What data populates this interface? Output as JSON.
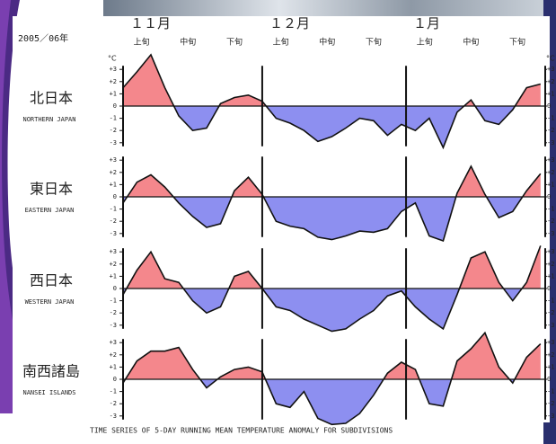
{
  "header": {
    "season": "2005／06年",
    "months": [
      "１１月",
      "１２月",
      "１月"
    ],
    "periods": [
      "上旬",
      "中旬",
      "下旬",
      "上旬",
      "中旬",
      "下旬",
      "上旬",
      "中旬",
      "下旬"
    ]
  },
  "footer": "TIME SERIES OF 5-DAY RUNNING MEAN TEMPERATURE ANOMALY FOR SUBDIVISIONS",
  "chart_data": [
    {
      "type": "area",
      "title": "北日本",
      "subtitle": "NORTHERN JAPAN",
      "unit": "°C",
      "x": [
        0,
        3,
        6,
        9,
        12,
        15,
        18,
        21,
        24,
        27,
        30,
        33,
        36,
        39,
        42,
        45,
        48,
        51,
        54,
        57,
        60,
        63,
        66,
        69,
        72,
        75,
        78,
        81,
        84,
        87,
        90
      ],
      "values": [
        1.5,
        2.8,
        4.2,
        1.5,
        -0.8,
        -2.0,
        -1.8,
        0.2,
        0.7,
        0.9,
        0.4,
        -1.0,
        -1.4,
        -2.0,
        -2.9,
        -2.5,
        -1.8,
        -1.0,
        -1.2,
        -2.4,
        -1.5,
        -2.0,
        -1.0,
        -3.4,
        -0.5,
        0.5,
        -1.2,
        -1.5,
        -0.3,
        1.5,
        1.8
      ],
      "xlim": [
        0,
        91
      ],
      "xticks": [
        0,
        30,
        61,
        91
      ],
      "ylim": [
        -3.7,
        3.7
      ],
      "yticks": [
        {
          "value": 3,
          "label": "+3"
        },
        {
          "value": 2,
          "label": "+2"
        },
        {
          "value": 1,
          "label": "+1"
        },
        0,
        -1,
        -2,
        -3
      ],
      "color_positive": "#f4878c",
      "color_negative": "#8d8ff0"
    },
    {
      "type": "area",
      "title": "東日本",
      "subtitle": "EASTERN JAPAN",
      "x": [
        0,
        3,
        6,
        9,
        12,
        15,
        18,
        21,
        24,
        27,
        30,
        33,
        36,
        39,
        42,
        45,
        48,
        51,
        54,
        57,
        60,
        63,
        66,
        69,
        72,
        75,
        78,
        81,
        84,
        87,
        90
      ],
      "values": [
        -0.5,
        1.2,
        1.8,
        0.8,
        -0.5,
        -1.6,
        -2.5,
        -2.2,
        0.5,
        1.6,
        0.2,
        -2.0,
        -2.4,
        -2.6,
        -3.3,
        -3.5,
        -3.2,
        -2.8,
        -2.9,
        -2.6,
        -1.2,
        -0.5,
        -3.2,
        -3.6,
        0.3,
        2.5,
        0.2,
        -1.7,
        -1.2,
        0.5,
        1.9
      ],
      "xlim": [
        0,
        91
      ],
      "xticks": [
        0,
        30,
        61,
        91
      ],
      "ylim": [
        -3.7,
        3.7
      ],
      "yticks": [
        {
          "value": 3,
          "label": "+3"
        },
        {
          "value": 2,
          "label": "+2"
        },
        {
          "value": 1,
          "label": "+1"
        },
        0,
        -1,
        -2,
        -3
      ],
      "color_positive": "#f4878c",
      "color_negative": "#8d8ff0"
    },
    {
      "type": "area",
      "title": "西日本",
      "subtitle": "WESTERN JAPAN",
      "x": [
        0,
        3,
        6,
        9,
        12,
        15,
        18,
        21,
        24,
        27,
        30,
        33,
        36,
        39,
        42,
        45,
        48,
        51,
        54,
        57,
        60,
        63,
        66,
        69,
        72,
        75,
        78,
        81,
        84,
        87,
        90
      ],
      "values": [
        -0.5,
        1.5,
        3.0,
        0.8,
        0.5,
        -1.0,
        -2.0,
        -1.5,
        1.0,
        1.4,
        0.0,
        -1.5,
        -1.8,
        -2.5,
        -3.0,
        -3.5,
        -3.3,
        -2.5,
        -1.8,
        -0.6,
        -0.2,
        -1.5,
        -2.5,
        -3.3,
        -0.5,
        2.5,
        3.0,
        0.5,
        -1.0,
        0.5,
        3.5
      ],
      "xlim": [
        0,
        91
      ],
      "xticks": [
        0,
        30,
        61,
        91
      ],
      "ylim": [
        -3.7,
        3.7
      ],
      "yticks": [
        {
          "value": 3,
          "label": "+3"
        },
        {
          "value": 2,
          "label": "+2"
        },
        {
          "value": 1,
          "label": "+1"
        },
        0,
        -1,
        -2,
        -3
      ],
      "color_positive": "#f4878c",
      "color_negative": "#8d8ff0"
    },
    {
      "type": "area",
      "title": "南西諸島",
      "subtitle": "NANSEI ISLANDS",
      "x": [
        0,
        3,
        6,
        9,
        12,
        15,
        18,
        21,
        24,
        27,
        30,
        33,
        36,
        39,
        42,
        45,
        48,
        51,
        54,
        57,
        60,
        63,
        66,
        69,
        72,
        75,
        78,
        81,
        84,
        87,
        90
      ],
      "values": [
        -0.3,
        1.5,
        2.3,
        2.3,
        2.6,
        0.8,
        -0.7,
        0.2,
        0.8,
        1.0,
        0.6,
        -2.0,
        -2.3,
        -1.0,
        -3.2,
        -3.7,
        -3.6,
        -2.8,
        -1.3,
        0.5,
        1.4,
        0.8,
        -2.0,
        -2.2,
        1.5,
        2.5,
        3.8,
        1.0,
        -0.3,
        1.8,
        2.9
      ],
      "xlim": [
        0,
        91
      ],
      "xticks": [
        0,
        30,
        61,
        91
      ],
      "ylim": [
        -3.7,
        3.7
      ],
      "yticks": [
        {
          "value": 3,
          "label": "+3"
        },
        {
          "value": 2,
          "label": "+2"
        },
        {
          "value": 1,
          "label": "+1"
        },
        0,
        -1,
        -2,
        -3
      ],
      "color_positive": "#f4878c",
      "color_negative": "#8d8ff0"
    }
  ]
}
